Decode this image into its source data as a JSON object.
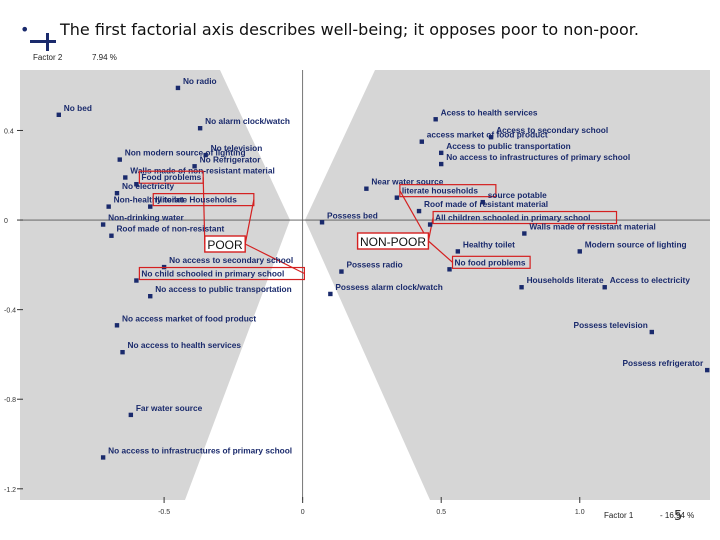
{
  "slide": {
    "title": "The first factorial axis describes well-being;  it opposes poor to non-poor.",
    "page_number": "5"
  },
  "colors": {
    "background": "#d6d6d6",
    "point": "#1a2a6c",
    "label": "#1a2a6c",
    "highlight": "#d42020",
    "band": "#ffffff"
  },
  "chart_data": {
    "type": "scatter",
    "xlabel": "Factor 1",
    "ylabel": "Factor 2",
    "xlabel_pct": "- 16.94 %",
    "ylabel_pct": "7.94 %",
    "xlim": [
      -1.02,
      1.47
    ],
    "ylim": [
      -1.25,
      0.67
    ],
    "x_ticks": [
      {
        "value": -0.5,
        "label": "-0.5"
      },
      {
        "value": 0,
        "label": "0"
      },
      {
        "value": 0.5,
        "label": "0.5"
      },
      {
        "value": 1.0,
        "label": "1.0"
      }
    ],
    "y_ticks": [
      {
        "value": 0.4,
        "label": "0.4"
      },
      {
        "value": 0,
        "label": "0"
      },
      {
        "value": -0.4,
        "label": "-0.4"
      },
      {
        "value": -0.8,
        "label": "-0.8"
      },
      {
        "value": -1.2,
        "label": "-1.2"
      }
    ],
    "points": [
      {
        "label": "No bed",
        "x": -0.88,
        "y": 0.47
      },
      {
        "label": "No radio",
        "x": -0.45,
        "y": 0.59
      },
      {
        "label": "No alarm clock/watch",
        "x": -0.37,
        "y": 0.41
      },
      {
        "label": "Non modern source of lighting",
        "x": -0.66,
        "y": 0.27
      },
      {
        "label": "Walls made of non-resistant material",
        "x": -0.64,
        "y": 0.19
      },
      {
        "label": "No television",
        "x": -0.35,
        "y": 0.29
      },
      {
        "label": "No Refrigerator",
        "x": -0.39,
        "y": 0.24
      },
      {
        "label": "Food problems",
        "x": -0.6,
        "y": 0.16
      },
      {
        "label": "No electricity",
        "x": -0.67,
        "y": 0.12
      },
      {
        "label": "Non-healthy toilet",
        "x": -0.7,
        "y": 0.06
      },
      {
        "label": "Illiterate Households",
        "x": -0.55,
        "y": 0.06
      },
      {
        "label": "Non-drinking water",
        "x": -0.72,
        "y": -0.02
      },
      {
        "label": "Roof made of non-resistant",
        "x": -0.69,
        "y": -0.07
      },
      {
        "label": "No access to secondary school",
        "x": -0.5,
        "y": -0.21
      },
      {
        "label": "No child schooled in primary school",
        "x": -0.6,
        "y": -0.27
      },
      {
        "label": "No access to public transportation",
        "x": -0.55,
        "y": -0.34
      },
      {
        "label": "No access market of food product",
        "x": -0.67,
        "y": -0.47
      },
      {
        "label": "No access to health services",
        "x": -0.65,
        "y": -0.59
      },
      {
        "label": "Far water source",
        "x": -0.62,
        "y": -0.87
      },
      {
        "label": "No access to infrastructures of primary school",
        "x": -0.72,
        "y": -1.06
      },
      {
        "label": "Acess to health services",
        "x": 0.48,
        "y": 0.45
      },
      {
        "label": "access market of food product",
        "x": 0.43,
        "y": 0.35
      },
      {
        "label": "Access to secondary school",
        "x": 0.68,
        "y": 0.37
      },
      {
        "label": "Access to public transportation",
        "x": 0.5,
        "y": 0.3
      },
      {
        "label": "No access to infrastructures of primary school",
        "x": 0.5,
        "y": 0.25
      },
      {
        "label": "Near water source",
        "x": 0.23,
        "y": 0.14
      },
      {
        "label": "literate  households",
        "x": 0.34,
        "y": 0.1
      },
      {
        "label": "source potable",
        "x": 0.65,
        "y": 0.08
      },
      {
        "label": "Roof made of resistant material",
        "x": 0.42,
        "y": 0.04
      },
      {
        "label": "All children schooled in primary school",
        "x": 0.46,
        "y": -0.02
      },
      {
        "label": "Possess bed",
        "x": 0.07,
        "y": -0.01
      },
      {
        "label": "Walls made of resistant material",
        "x": 0.8,
        "y": -0.06
      },
      {
        "label": "Healthy toilet",
        "x": 0.56,
        "y": -0.14
      },
      {
        "label": "Modern source of lighting",
        "x": 1.0,
        "y": -0.14
      },
      {
        "label": "Possess radio",
        "x": 0.14,
        "y": -0.23
      },
      {
        "label": "No food problems",
        "x": 0.53,
        "y": -0.22
      },
      {
        "label": "Access to electricity",
        "x": 1.09,
        "y": -0.3
      },
      {
        "label": "Households literate",
        "x": 0.79,
        "y": -0.3
      },
      {
        "label": "Possess alarm clock/watch",
        "x": 0.1,
        "y": -0.33
      },
      {
        "label": "Possess television",
        "x": 1.26,
        "y": -0.5
      },
      {
        "label": "Possess refrigerator",
        "x": 1.46,
        "y": -0.67
      }
    ],
    "highlighted": [
      "Food problems",
      "Illiterate Households",
      "No child schooled in primary school",
      "literate  households",
      "All children schooled in primary school",
      "No food problems"
    ],
    "groups": [
      {
        "name": "POOR",
        "links": [
          "Food problems",
          "Illiterate Households",
          "No child schooled in primary school"
        ]
      },
      {
        "name": "NON-POOR",
        "links": [
          "literate  households",
          "All children schooled in primary school",
          "No food problems"
        ]
      }
    ]
  }
}
